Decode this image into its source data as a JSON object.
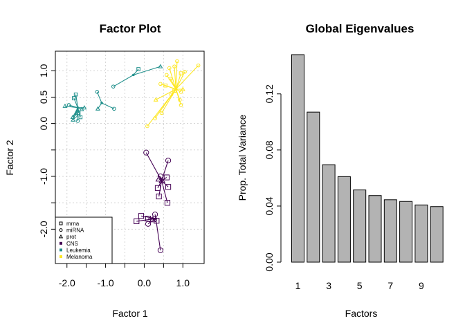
{
  "chart_data": [
    {
      "type": "scatter",
      "title": "Factor Plot",
      "xlabel": "Factor  1",
      "ylabel": "Factor  2",
      "xlim": [
        -2.3,
        1.55
      ],
      "ylim": [
        -2.65,
        1.37
      ],
      "x_ticks": [
        -2.0,
        -1.5,
        -1.0,
        -0.5,
        0.0,
        0.5,
        1.0
      ],
      "x_tick_labels": [
        "-2.0",
        "",
        "-1.0",
        "",
        "0.0",
        "",
        "1.0"
      ],
      "y_ticks": [
        1.0,
        0.5,
        0.0,
        -0.5,
        -1.0,
        -1.5,
        -2.0
      ],
      "y_tick_labels": [
        "1.0",
        "0.5",
        "0.0",
        "",
        "-1.0",
        "",
        "-2.0"
      ],
      "grid": true,
      "legend_position": "bottom-left",
      "legend": [
        {
          "label": "mrna",
          "kind": "shape",
          "shape": "square"
        },
        {
          "label": "miRNA",
          "kind": "shape",
          "shape": "circle"
        },
        {
          "label": "prot",
          "kind": "shape",
          "shape": "triangle"
        },
        {
          "label": "CNS",
          "kind": "color",
          "color": "#440154"
        },
        {
          "label": "Leukemia",
          "kind": "color",
          "color": "#21908C"
        },
        {
          "label": "Melanoma",
          "kind": "color",
          "color": "#FDE725"
        }
      ],
      "series": [
        {
          "color": "#21908C",
          "groups": [
            {
              "center": [
                -1.72,
                0.3
              ],
              "points": [
                {
                  "shape": "square",
                  "x": -1.77,
                  "y": 0.55
                },
                {
                  "shape": "square",
                  "x": -1.82,
                  "y": 0.48
                },
                {
                  "shape": "circle",
                  "x": -1.95,
                  "y": 0.35
                },
                {
                  "shape": "triangle",
                  "x": -2.05,
                  "y": 0.33
                },
                {
                  "shape": "triangle",
                  "x": -1.55,
                  "y": 0.3
                },
                {
                  "shape": "triangle",
                  "x": -1.62,
                  "y": 0.27
                },
                {
                  "shape": "square",
                  "x": -1.65,
                  "y": 0.12
                },
                {
                  "shape": "circle",
                  "x": -1.78,
                  "y": 0.15
                },
                {
                  "shape": "triangle",
                  "x": -1.85,
                  "y": 0.12
                },
                {
                  "shape": "circle",
                  "x": -1.72,
                  "y": 0.05
                },
                {
                  "shape": "square",
                  "x": -1.7,
                  "y": 0.2
                },
                {
                  "shape": "triangle",
                  "x": -1.84,
                  "y": 0.07
                }
              ]
            },
            {
              "center": [
                -1.1,
                0.39
              ],
              "points": [
                {
                  "shape": "circle",
                  "x": -1.22,
                  "y": 0.6
                },
                {
                  "shape": "triangle",
                  "x": -1.2,
                  "y": 0.28
                },
                {
                  "shape": "circle",
                  "x": -0.78,
                  "y": 0.28
                }
              ]
            },
            {
              "center": [
                -0.28,
                0.92
              ],
              "points": [
                {
                  "shape": "circle",
                  "x": -0.8,
                  "y": 0.7
                },
                {
                  "shape": "square",
                  "x": -0.15,
                  "y": 1.03
                },
                {
                  "shape": "triangle",
                  "x": 0.42,
                  "y": 1.08
                }
              ]
            }
          ]
        },
        {
          "color": "#FDE725",
          "groups": [
            {
              "center": [
                0.82,
                0.65
              ],
              "points": [
                {
                  "shape": "circle",
                  "x": 0.08,
                  "y": -0.05
                },
                {
                  "shape": "circle",
                  "x": 0.28,
                  "y": 0.1
                },
                {
                  "shape": "circle",
                  "x": 0.45,
                  "y": 0.2
                },
                {
                  "shape": "triangle",
                  "x": 0.3,
                  "y": 0.45
                },
                {
                  "shape": "circle",
                  "x": 0.42,
                  "y": 0.75
                },
                {
                  "shape": "square",
                  "x": 0.55,
                  "y": 0.72
                },
                {
                  "shape": "circle",
                  "x": 0.58,
                  "y": 0.92
                },
                {
                  "shape": "circle",
                  "x": 0.65,
                  "y": 1.05
                },
                {
                  "shape": "circle",
                  "x": 0.78,
                  "y": 1.08
                },
                {
                  "shape": "circle",
                  "x": 0.85,
                  "y": 1.18
                },
                {
                  "shape": "square",
                  "x": 0.95,
                  "y": 0.95
                },
                {
                  "shape": "circle",
                  "x": 1.05,
                  "y": 0.98
                },
                {
                  "shape": "circle",
                  "x": 1.4,
                  "y": 1.1
                },
                {
                  "shape": "triangle",
                  "x": 1.0,
                  "y": 0.65
                },
                {
                  "shape": "circle",
                  "x": 0.95,
                  "y": 0.6
                },
                {
                  "shape": "circle",
                  "x": 0.7,
                  "y": 0.55
                },
                {
                  "shape": "circle",
                  "x": 0.92,
                  "y": 0.45
                },
                {
                  "shape": "circle",
                  "x": 0.95,
                  "y": 0.35
                },
                {
                  "shape": "square",
                  "x": 0.78,
                  "y": 0.62
                },
                {
                  "shape": "circle",
                  "x": 0.68,
                  "y": 0.85
                }
              ]
            }
          ]
        },
        {
          "color": "#440154",
          "groups": [
            {
              "center": [
                0.45,
                -1.08
              ],
              "points": [
                {
                  "shape": "circle",
                  "x": 0.05,
                  "y": -0.55
                },
                {
                  "shape": "circle",
                  "x": 0.62,
                  "y": -0.7
                },
                {
                  "shape": "circle",
                  "x": 0.42,
                  "y": -1.0
                },
                {
                  "shape": "triangle",
                  "x": 0.38,
                  "y": -1.05
                },
                {
                  "shape": "square",
                  "x": 0.58,
                  "y": -1.02
                },
                {
                  "shape": "triangle",
                  "x": 0.46,
                  "y": -1.08
                },
                {
                  "shape": "square",
                  "x": 0.62,
                  "y": -1.2
                },
                {
                  "shape": "square",
                  "x": 0.35,
                  "y": -1.22
                },
                {
                  "shape": "square",
                  "x": 0.38,
                  "y": -1.38
                },
                {
                  "shape": "square",
                  "x": 0.6,
                  "y": -1.5
                }
              ]
            },
            {
              "center": [
                0.3,
                -1.8
              ],
              "points": [
                {
                  "shape": "square",
                  "x": -0.2,
                  "y": -1.85
                },
                {
                  "shape": "square",
                  "x": -0.08,
                  "y": -1.75
                },
                {
                  "shape": "circle",
                  "x": 0.1,
                  "y": -1.9
                },
                {
                  "shape": "circle",
                  "x": 0.28,
                  "y": -1.72
                },
                {
                  "shape": "triangle",
                  "x": 0.22,
                  "y": -1.82
                },
                {
                  "shape": "square",
                  "x": 0.32,
                  "y": -1.84
                },
                {
                  "shape": "circle",
                  "x": 0.42,
                  "y": -2.4
                },
                {
                  "shape": "square",
                  "x": 0.1,
                  "y": -1.8
                }
              ]
            }
          ]
        }
      ]
    },
    {
      "type": "bar",
      "title": "Global Eigenvalues",
      "xlabel": "Factors",
      "ylabel": "Prop. Total Variance",
      "categories": [
        "1",
        "2",
        "3",
        "4",
        "5",
        "6",
        "7",
        "8",
        "9",
        "10"
      ],
      "values": [
        0.148,
        0.107,
        0.0695,
        0.061,
        0.0515,
        0.0475,
        0.0445,
        0.0433,
        0.0408,
        0.0396
      ],
      "ylim": [
        0,
        0.148
      ],
      "y_ticks": [
        0.0,
        0.04,
        0.08,
        0.12
      ],
      "y_tick_labels": [
        "0.00",
        "0.04",
        "0.08",
        "0.12"
      ],
      "x_tick_labels": [
        "1",
        "",
        "3",
        "",
        "5",
        "",
        "7",
        "",
        "9",
        ""
      ],
      "bar_color": "#B3B3B3",
      "grid": false
    }
  ]
}
